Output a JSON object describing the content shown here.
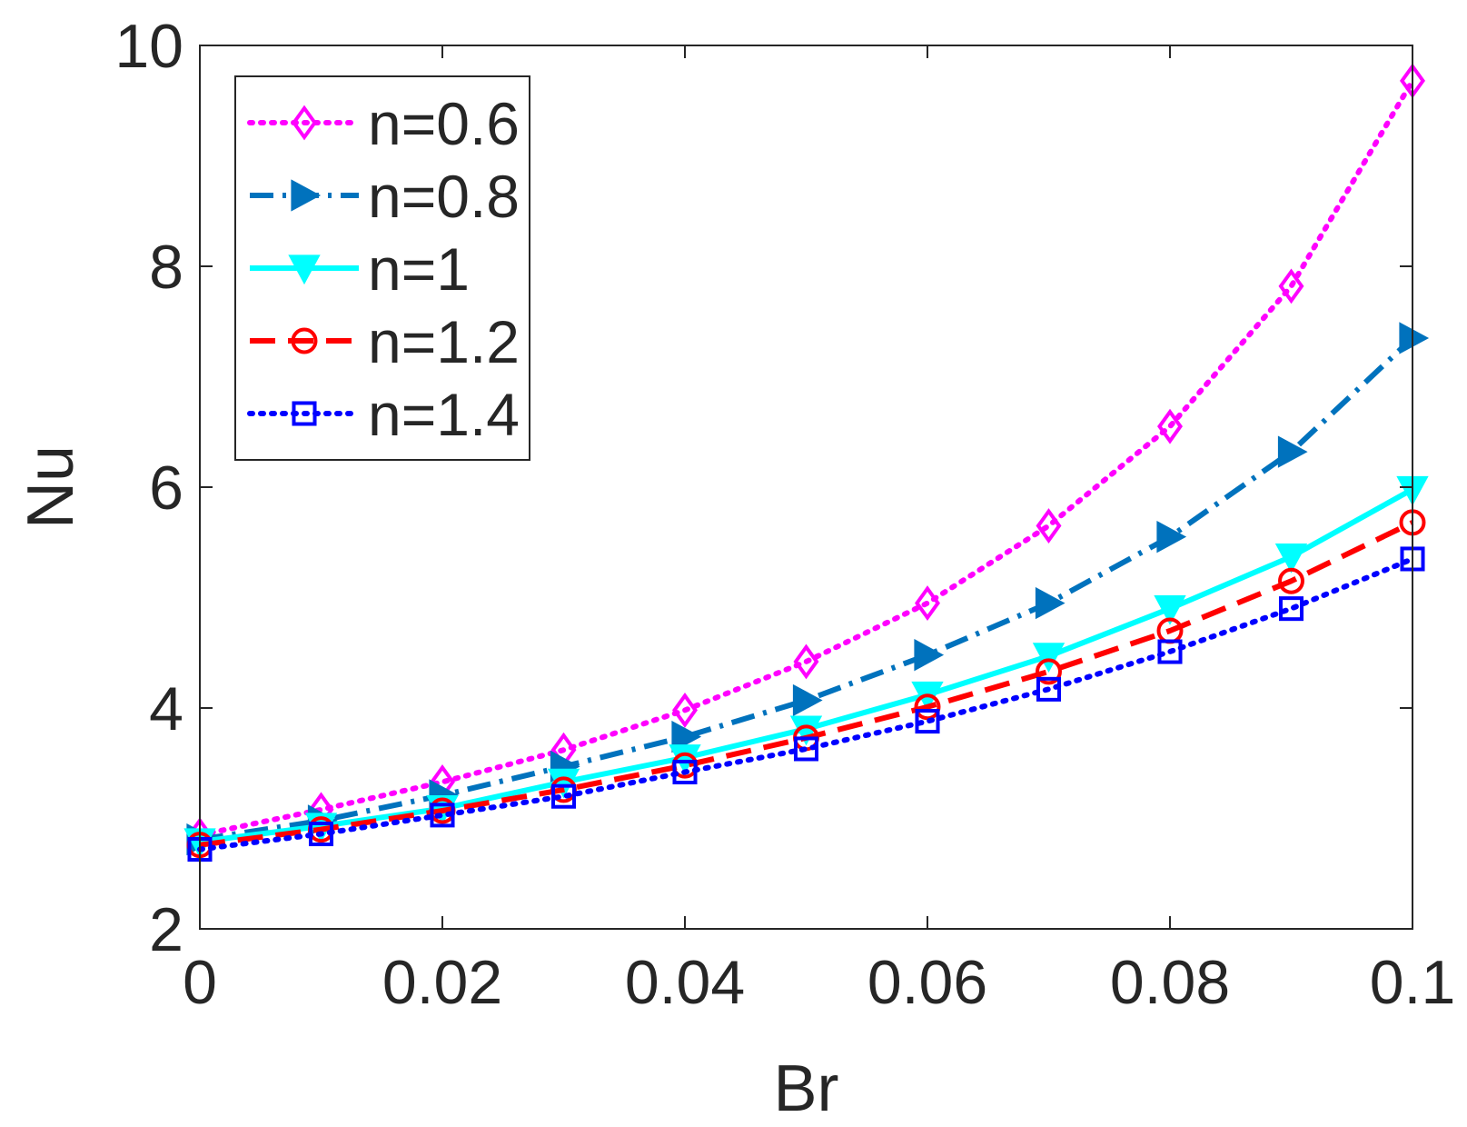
{
  "chart_data": {
    "type": "line",
    "title": "",
    "xlabel": "Br",
    "ylabel": "Nu",
    "xlim": [
      0,
      0.1
    ],
    "ylim": [
      2,
      10
    ],
    "x_ticks": [
      0,
      0.02,
      0.04,
      0.06,
      0.08,
      0.1
    ],
    "x_tick_labels": [
      "0",
      "0.02",
      "0.04",
      "0.06",
      "0.08",
      "0.1"
    ],
    "y_ticks": [
      2,
      4,
      6,
      8,
      10
    ],
    "y_tick_labels": [
      "2",
      "4",
      "6",
      "8",
      "10"
    ],
    "grid": false,
    "legend_position": "top-left",
    "x": [
      0,
      0.01,
      0.02,
      0.03,
      0.04,
      0.05,
      0.06,
      0.07,
      0.08,
      0.09,
      0.1
    ],
    "series": [
      {
        "name": "n=0.6",
        "color": "#ff00ff",
        "line_style": "dotted",
        "marker": "diamond",
        "values": [
          2.85,
          3.08,
          3.33,
          3.62,
          3.98,
          4.42,
          4.95,
          5.65,
          6.55,
          7.82,
          9.68
        ]
      },
      {
        "name": "n=0.8",
        "color": "#0072bd",
        "line_style": "dashdot",
        "marker": "triangle-right",
        "values": [
          2.81,
          2.98,
          3.21,
          3.47,
          3.74,
          4.07,
          4.48,
          4.95,
          5.55,
          6.32,
          7.35
        ]
      },
      {
        "name": "n=1",
        "color": "#00ffff",
        "line_style": "solid",
        "marker": "triangle-down",
        "values": [
          2.79,
          2.93,
          3.09,
          3.33,
          3.55,
          3.81,
          4.12,
          4.47,
          4.9,
          5.37,
          5.98
        ]
      },
      {
        "name": "n=1.2",
        "color": "#ff0000",
        "line_style": "dashed",
        "marker": "circle",
        "values": [
          2.76,
          2.9,
          3.07,
          3.26,
          3.48,
          3.73,
          4.01,
          4.33,
          4.7,
          5.15,
          5.68
        ]
      },
      {
        "name": "n=1.4",
        "color": "#0000ff",
        "line_style": "dotted",
        "marker": "square",
        "values": [
          2.72,
          2.86,
          3.03,
          3.2,
          3.42,
          3.63,
          3.88,
          4.17,
          4.51,
          4.9,
          5.35
        ]
      }
    ]
  }
}
